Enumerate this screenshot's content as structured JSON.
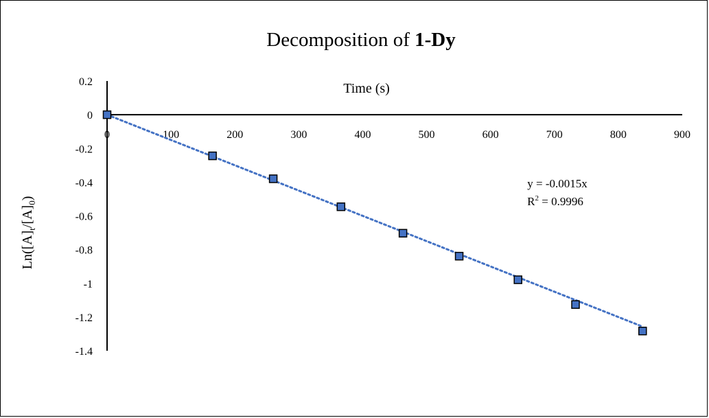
{
  "chart_data": {
    "type": "scatter",
    "title_prefix": "Decomposition  of ",
    "title_bold": "1-Dy",
    "xlabel": "Time (s)",
    "ylabel_parts": [
      "Ln([A]",
      "t",
      "/[A]",
      "0",
      ")"
    ],
    "xlim": [
      0,
      900
    ],
    "ylim": [
      -1.4,
      0.2
    ],
    "x_ticks": [
      0,
      100,
      200,
      300,
      400,
      500,
      600,
      700,
      800,
      900
    ],
    "y_ticks": [
      0.2,
      0,
      -0.2,
      -0.4,
      -0.6,
      -0.8,
      -1,
      -1.2,
      -1.4
    ],
    "x_tick_labels": [
      "0",
      "100",
      "200",
      "300",
      "400",
      "500",
      "600",
      "700",
      "800",
      "900"
    ],
    "y_tick_labels": [
      "0.2",
      "0",
      "-0.2",
      "-0.4",
      "-0.6",
      "-0.8",
      "-1",
      "-1.2",
      "-1.4"
    ],
    "grid": false,
    "series": [
      {
        "x": [
          0,
          165,
          260,
          366,
          463,
          551,
          643,
          733,
          838
        ],
        "y": [
          0,
          -0.244,
          -0.38,
          -0.546,
          -0.703,
          -0.839,
          -0.979,
          -1.126,
          -1.283
        ],
        "marker": "square",
        "color": "#4472C4",
        "edge_color": "#000000"
      }
    ],
    "trendline": {
      "slope": -0.0015,
      "intercept": 0,
      "x_range": [
        0,
        838
      ],
      "style": "dotted",
      "color": "#4472C4"
    },
    "annotations": {
      "equation": "y = -0.0015x",
      "r2_prefix": "R",
      "r2_sup": "2",
      "r2_suffix": " = 0.9996"
    }
  }
}
